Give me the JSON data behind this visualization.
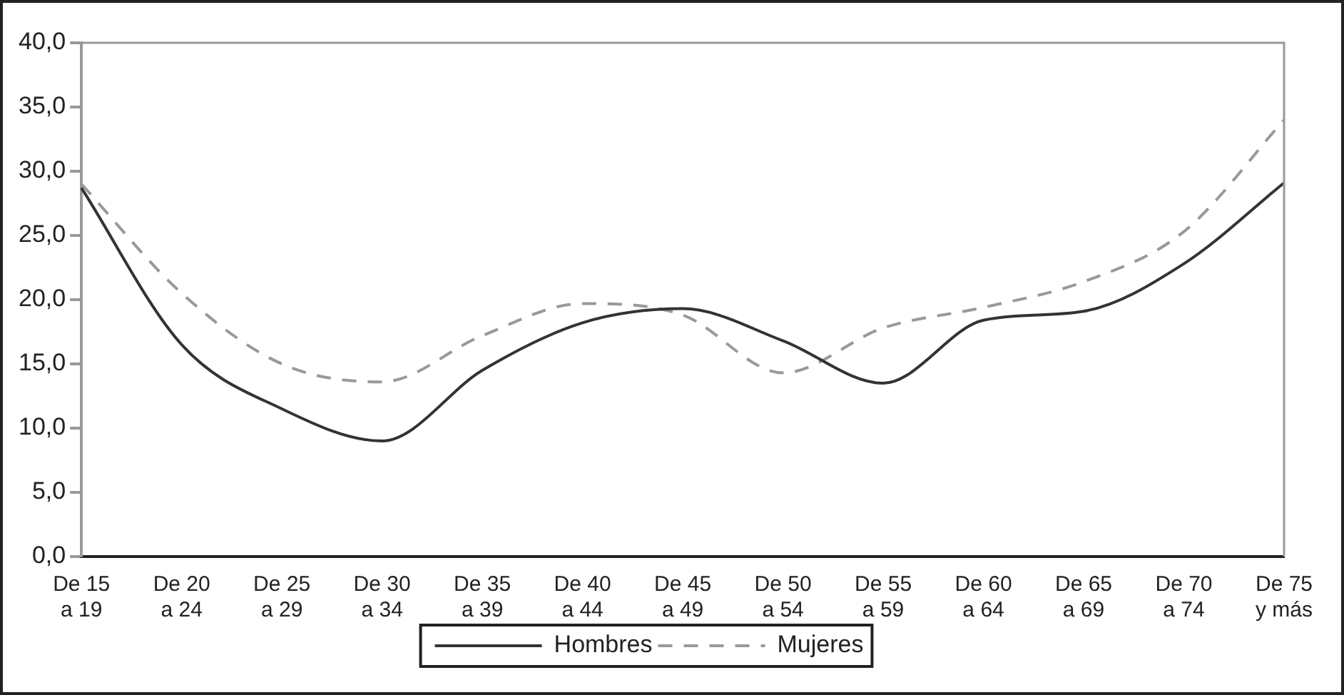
{
  "chart_data": {
    "type": "line",
    "categories": [
      "De 15 a 19",
      "De 20 a 24",
      "De 25 a 29",
      "De 30 a 34",
      "De 35 a 39",
      "De 40 a 44",
      "De 45 a 49",
      "De 50 a 54",
      "De 55 a 59",
      "De 60 a 64",
      "De 65 a 69",
      "De 70 a 74",
      "De 75 y más"
    ],
    "series": [
      {
        "name": "Hombres",
        "color": "#333333",
        "line_style": "solid",
        "values": [
          28.7,
          16.5,
          11.5,
          9.0,
          14.5,
          18.2,
          19.3,
          16.8,
          13.5,
          18.4,
          19.1,
          22.8,
          29.1
        ]
      },
      {
        "name": "Mujeres",
        "color": "#999999",
        "line_style": "dashed",
        "values": [
          29.0,
          20.5,
          15.0,
          13.6,
          17.2,
          19.7,
          18.8,
          14.3,
          17.8,
          19.4,
          21.4,
          25.3,
          34.0
        ]
      }
    ],
    "ylim": [
      0,
      40
    ],
    "yticks": [
      {
        "value": 0,
        "label": "0,0"
      },
      {
        "value": 5,
        "label": "5,0"
      },
      {
        "value": 10,
        "label": "10,0"
      },
      {
        "value": 15,
        "label": "15,0"
      },
      {
        "value": 20,
        "label": "20,0"
      },
      {
        "value": 25,
        "label": "25,0"
      },
      {
        "value": 30,
        "label": "30,0"
      },
      {
        "value": 35,
        "label": "35,0"
      },
      {
        "value": 40,
        "label": "40,0"
      }
    ],
    "grid": false,
    "legend": "bottom",
    "marker": "none"
  }
}
